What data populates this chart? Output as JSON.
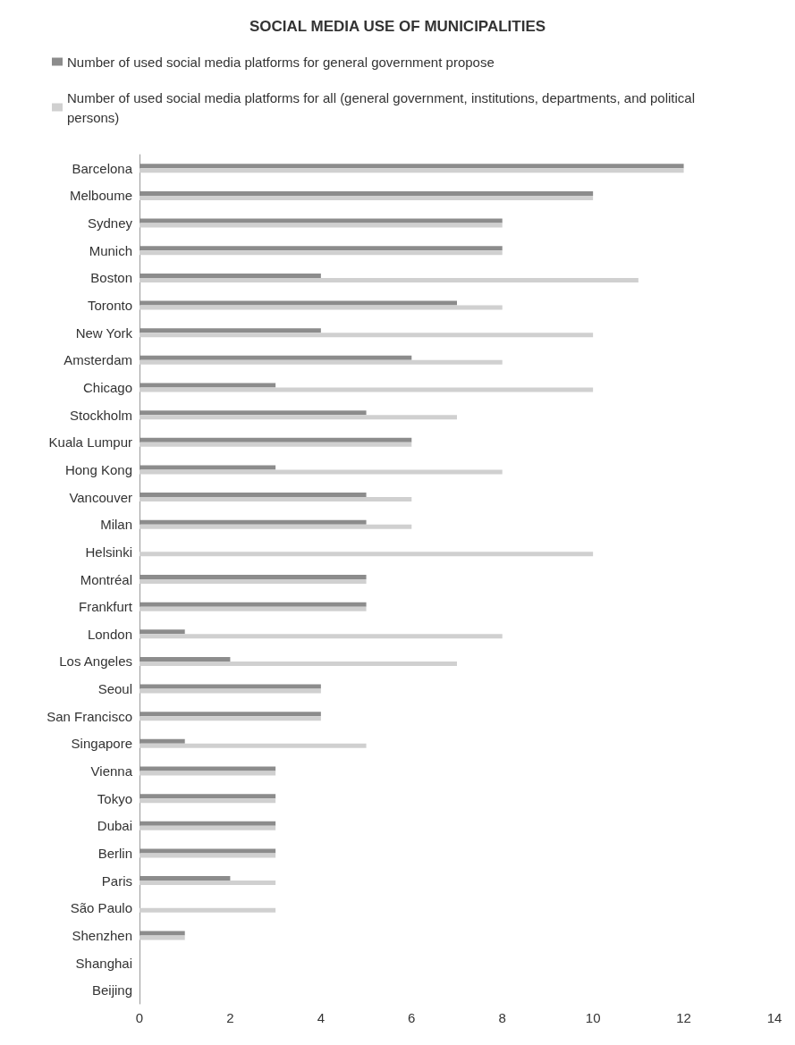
{
  "chart_data": {
    "type": "bar",
    "orientation": "horizontal",
    "title": "SOCIAL MEDIA USE OF MUNICIPALITIES",
    "categories": [
      "Barcelona",
      "Melboume",
      "Sydney",
      "Munich",
      "Boston",
      "Toronto",
      "New York",
      "Amsterdam",
      "Chicago",
      "Stockholm",
      "Kuala Lumpur",
      "Hong Kong",
      "Vancouver",
      "Milan",
      "Helsinki",
      "Montréal",
      "Frankfurt",
      "London",
      "Los Angeles",
      "Seoul",
      "San Francisco",
      "Singapore",
      "Vienna",
      "Tokyo",
      "Dubai",
      "Berlin",
      "Paris",
      "São Paulo",
      "Shenzhen",
      "Shanghai",
      "Beijing"
    ],
    "series": [
      {
        "name": "Number of used social media platforms for general government propose",
        "color": "#8c8c8c",
        "values": [
          12,
          10,
          8,
          8,
          4,
          7,
          4,
          6,
          3,
          5,
          6,
          3,
          5,
          5,
          0,
          5,
          5,
          1,
          2,
          4,
          4,
          1,
          3,
          3,
          3,
          3,
          2,
          0,
          1,
          0,
          0
        ]
      },
      {
        "name": "Number of used social media platforms for all (general government, institutions, departments, and political persons)",
        "color": "#d0d0d0",
        "values": [
          12,
          10,
          8,
          8,
          11,
          8,
          10,
          8,
          10,
          7,
          6,
          8,
          6,
          6,
          10,
          5,
          5,
          8,
          7,
          4,
          4,
          5,
          3,
          3,
          3,
          3,
          3,
          3,
          1,
          0,
          0
        ]
      }
    ],
    "xlim": [
      0,
      14
    ],
    "xticks": [
      0,
      2,
      4,
      6,
      8,
      10,
      12,
      14
    ],
    "grid": false,
    "legend": "top left"
  }
}
